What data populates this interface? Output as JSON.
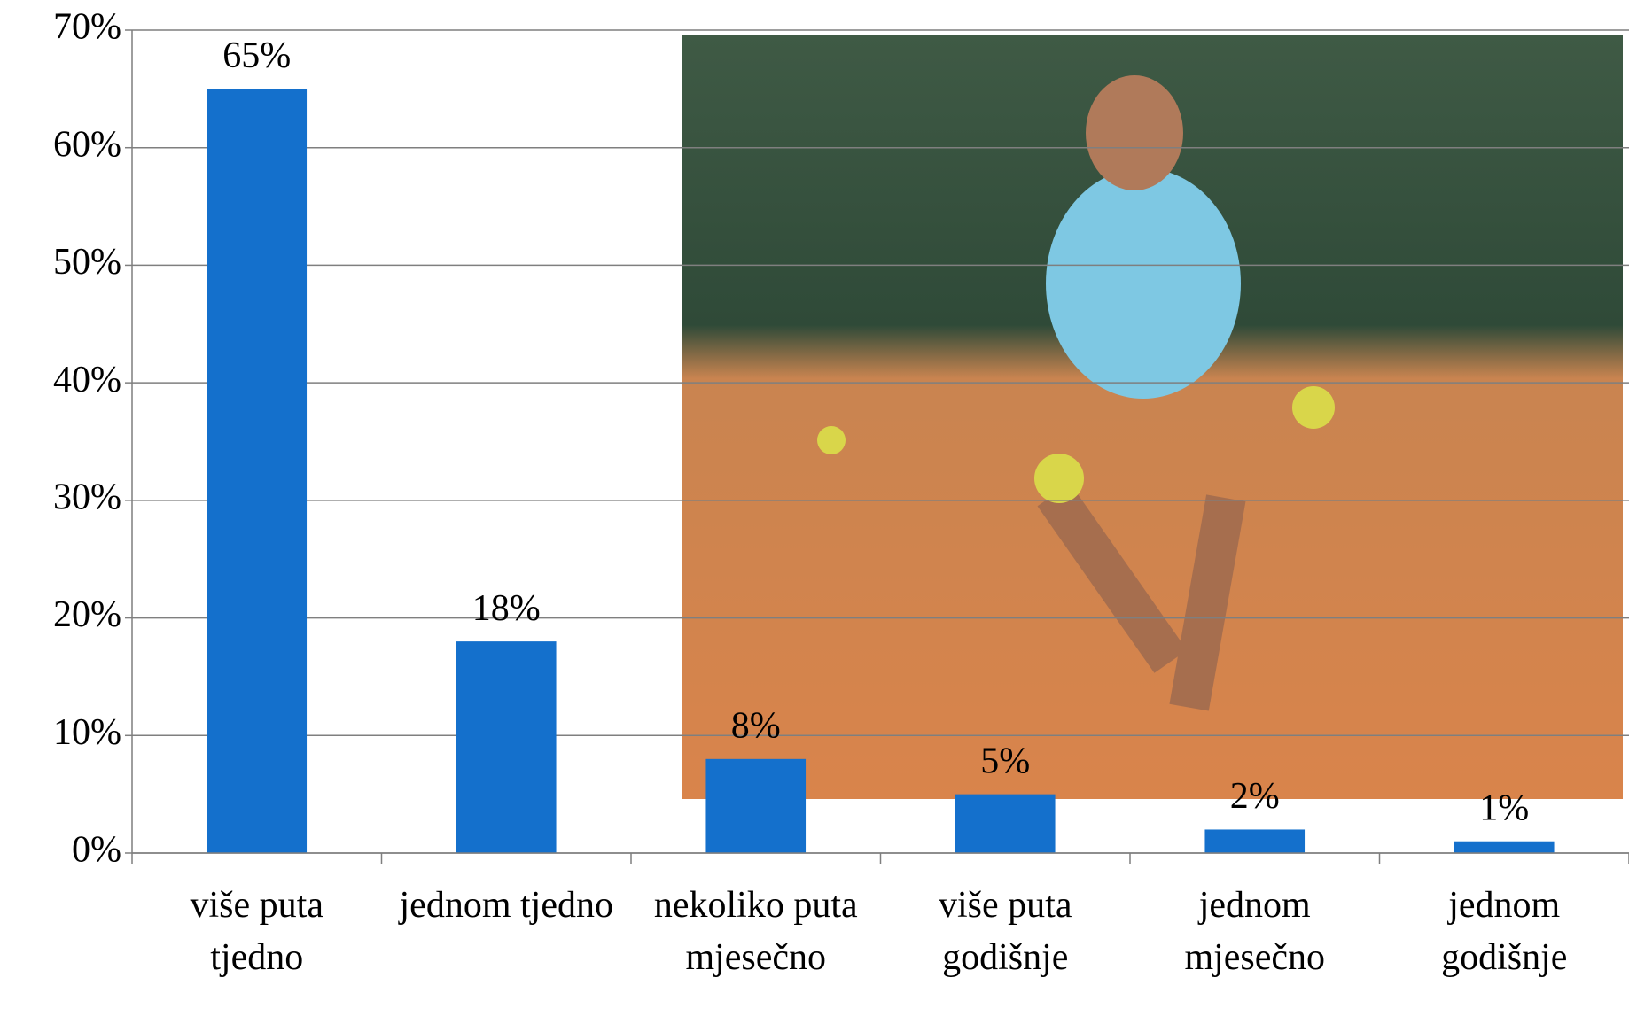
{
  "chart_data": {
    "type": "bar",
    "categories": [
      "više puta tjedno",
      "jednom tjedno",
      "nekoliko puta mjesečno",
      "više puta godišnje",
      "jednom mjesečno",
      "jednom godišnje"
    ],
    "values": [
      65,
      18,
      8,
      5,
      2,
      1
    ],
    "value_labels": [
      "65%",
      "18%",
      "8%",
      "5%",
      "2%",
      "1%"
    ],
    "color": "#1470cc",
    "ylim": [
      0,
      70
    ],
    "yticks": [
      {
        "value": 0,
        "label": "0%"
      },
      {
        "value": 10,
        "label": "10%"
      },
      {
        "value": 20,
        "label": "20%"
      },
      {
        "value": 30,
        "label": "30%"
      },
      {
        "value": 40,
        "label": "40%"
      },
      {
        "value": 50,
        "label": "50%"
      },
      {
        "value": 60,
        "label": "60%"
      },
      {
        "value": 70,
        "label": "70%"
      }
    ],
    "grid": true
  }
}
